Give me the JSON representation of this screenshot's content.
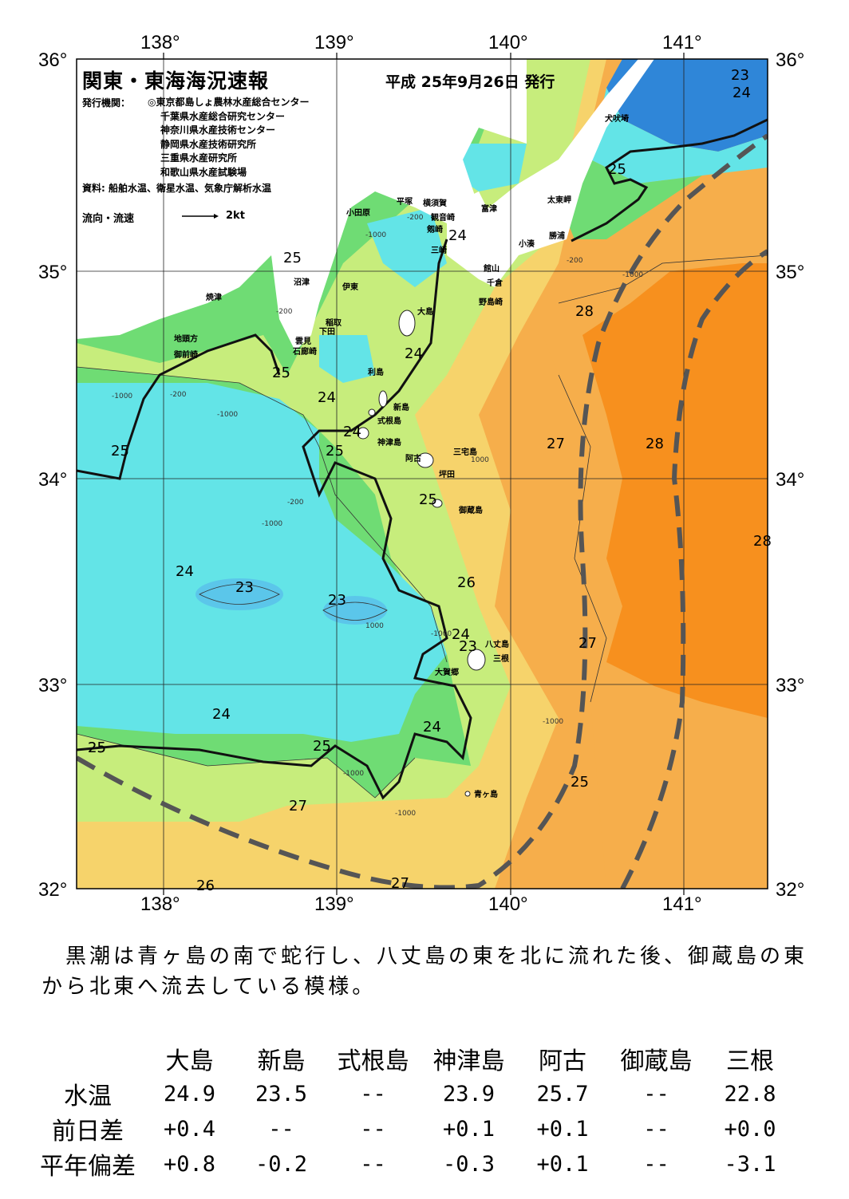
{
  "map": {
    "title": "関東・東海海況速報",
    "issue_date": "平成 25年9月26日 発行",
    "issuer_label": "発行機関：",
    "issuers": [
      "◎東京都島しょ農林水産総合センター",
      "千葉県水産総合研究センター",
      "神奈川県水産技術センター",
      "静岡県水産技術研究所",
      "三重県水産研究所",
      "和歌山県水産試験場"
    ],
    "source": "資料: 船舶水温、衛星水温、気象庁解析水温",
    "legend_label": "流向・流速",
    "legend_speed": "2kt",
    "lon_labels": [
      "138°",
      "139°",
      "140°",
      "141°"
    ],
    "lat_labels": [
      "36°",
      "35°",
      "34°",
      "33°",
      "32°"
    ],
    "places": [
      {
        "name": "犬吠埼"
      },
      {
        "name": "太東岬"
      },
      {
        "name": "勝浦"
      },
      {
        "name": "小湊"
      },
      {
        "name": "富津"
      },
      {
        "name": "館山"
      },
      {
        "name": "千倉"
      },
      {
        "name": "野島崎"
      },
      {
        "name": "横須賀"
      },
      {
        "name": "平塚"
      },
      {
        "name": "小田原"
      },
      {
        "name": "観音崎"
      },
      {
        "name": "剱崎"
      },
      {
        "name": "三崎"
      },
      {
        "name": "沼津"
      },
      {
        "name": "伊東"
      },
      {
        "name": "焼津"
      },
      {
        "name": "稲取"
      },
      {
        "name": "下田"
      },
      {
        "name": "雲見"
      },
      {
        "name": "石廊崎"
      },
      {
        "name": "地頭方"
      },
      {
        "name": "御前崎"
      },
      {
        "name": "大島"
      },
      {
        "name": "利島"
      },
      {
        "name": "新島"
      },
      {
        "name": "式根島"
      },
      {
        "name": "神津島"
      },
      {
        "name": "三宅島"
      },
      {
        "name": "阿古"
      },
      {
        "name": "坪田"
      },
      {
        "name": "御蔵島"
      },
      {
        "name": "八丈島"
      },
      {
        "name": "三根"
      },
      {
        "name": "大賀郷"
      },
      {
        "name": "青ヶ島"
      }
    ],
    "isotherm_labels": [
      "23",
      "24",
      "25",
      "24",
      "25",
      "25",
      "24",
      "28",
      "25",
      "24",
      "24",
      "24",
      "25",
      "27",
      "28",
      "25",
      "25",
      "28",
      "24",
      "23",
      "23",
      "26",
      "24",
      "23",
      "27",
      "24",
      "25",
      "25",
      "25",
      "27",
      "26",
      "27",
      "27"
    ],
    "depth_labels": [
      "-1000",
      "-200",
      "-1000",
      "-200",
      "-1000",
      "-200",
      "-1000",
      "-200",
      "1000",
      "-1000",
      "1000",
      "-1000",
      "-1000",
      "-1000",
      "-1000",
      "-200",
      "1000",
      "-1000",
      "-1000",
      "-200"
    ],
    "colors": {
      "t28": "#f7901e",
      "t27": "#f6ae4b",
      "t26": "#f6d36b",
      "t25": "#c7ed7c",
      "t24": "#6fdc74",
      "t23": "#63e4e7",
      "t22": "#2f86d8",
      "land": "#ffffff",
      "kuroshio": "#555555"
    }
  },
  "summary": "　黒潮は青ヶ島の南で蛇行し、八丈島の東を北に流れた後、御蔵島の東から北東へ流去している模様。",
  "table": {
    "columns": [
      "大島",
      "新島",
      "式根島",
      "神津島",
      "阿古",
      "御蔵島",
      "三根"
    ],
    "rows": [
      {
        "label": "水温",
        "values": [
          "24.9",
          "23.5",
          "--",
          "23.9",
          "25.7",
          "--",
          "22.8"
        ]
      },
      {
        "label": "前日差",
        "values": [
          "+0.4",
          "--",
          "--",
          "+0.1",
          "+0.1",
          "--",
          "+0.0"
        ]
      },
      {
        "label": "平年偏差",
        "values": [
          "+0.8",
          "-0.2",
          "--",
          "-0.3",
          "+0.1",
          "--",
          "-3.1"
        ]
      }
    ]
  }
}
